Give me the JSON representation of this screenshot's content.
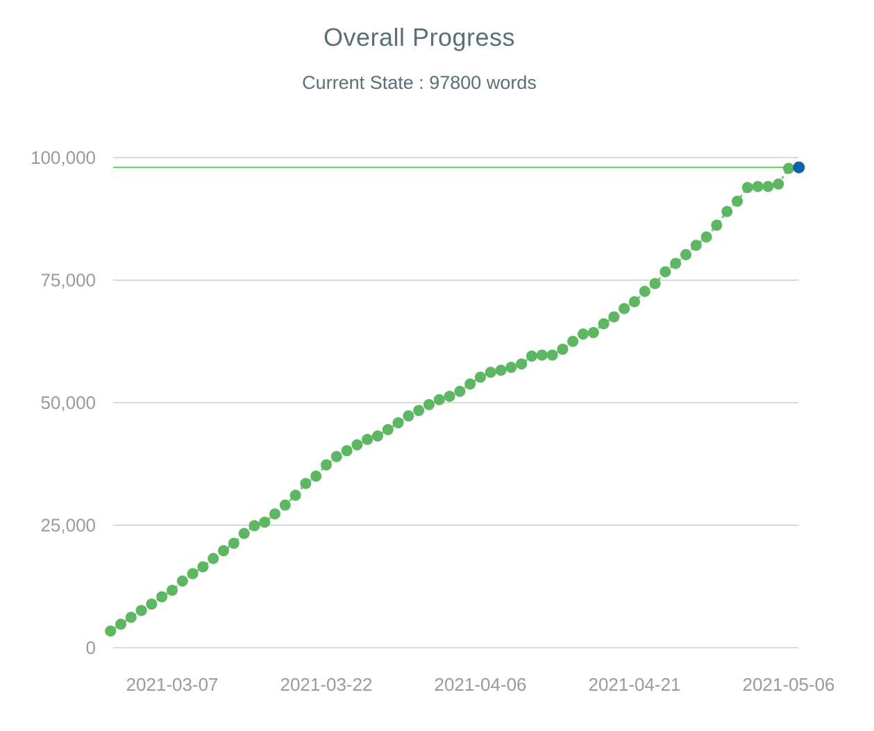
{
  "page": {
    "title": "Overall Progress",
    "subtitle": "Current State : 97800 words",
    "current_words": 97800
  },
  "colors": {
    "background": "#ffffff",
    "title_text": "#5a6f78",
    "axis_text": "#9a9a9a",
    "gridline": "#c2c2c2",
    "series_green": "#5db762",
    "connector_green": "#7cc87c",
    "goal_line_green": "#72cf72",
    "final_blue": "#1062a8"
  },
  "chart_data": {
    "type": "scatter",
    "title": "Overall Progress",
    "subtitle": "Current State : 97800 words",
    "xlabel": "",
    "ylabel": "",
    "grid": "horizontal",
    "legend": "none",
    "ylim": [
      0,
      100000
    ],
    "y_tick_values": [
      0,
      25000,
      50000,
      75000,
      100000
    ],
    "y_tick_labels": [
      "0",
      "25,000",
      "50,000",
      "75,000",
      "100,000"
    ],
    "x_tick_dates": [
      "2021-03-07",
      "2021-03-22",
      "2021-04-06",
      "2021-04-21",
      "2021-05-06"
    ],
    "goal_line_value": 98000,
    "series": [
      {
        "name": "daily-word-count",
        "style": "dots-with-dashed-connector",
        "columns": [
          "date",
          "words"
        ],
        "points": [
          [
            "2021-03-01",
            3400
          ],
          [
            "2021-03-02",
            4800
          ],
          [
            "2021-03-03",
            6200
          ],
          [
            "2021-03-04",
            7600
          ],
          [
            "2021-03-05",
            8900
          ],
          [
            "2021-03-06",
            10400
          ],
          [
            "2021-03-07",
            11700
          ],
          [
            "2021-03-08",
            13600
          ],
          [
            "2021-03-09",
            15100
          ],
          [
            "2021-03-10",
            16500
          ],
          [
            "2021-03-11",
            18200
          ],
          [
            "2021-03-12",
            19800
          ],
          [
            "2021-03-13",
            21300
          ],
          [
            "2021-03-14",
            23300
          ],
          [
            "2021-03-15",
            24900
          ],
          [
            "2021-03-16",
            25600
          ],
          [
            "2021-03-17",
            27300
          ],
          [
            "2021-03-18",
            29100
          ],
          [
            "2021-03-19",
            31100
          ],
          [
            "2021-03-20",
            33500
          ],
          [
            "2021-03-21",
            35000
          ],
          [
            "2021-03-22",
            37300
          ],
          [
            "2021-03-23",
            39000
          ],
          [
            "2021-03-24",
            40200
          ],
          [
            "2021-03-25",
            41400
          ],
          [
            "2021-03-26",
            42500
          ],
          [
            "2021-03-27",
            43200
          ],
          [
            "2021-03-28",
            44500
          ],
          [
            "2021-03-29",
            45900
          ],
          [
            "2021-03-30",
            47300
          ],
          [
            "2021-03-31",
            48400
          ],
          [
            "2021-04-01",
            49600
          ],
          [
            "2021-04-02",
            50600
          ],
          [
            "2021-04-03",
            51300
          ],
          [
            "2021-04-04",
            52300
          ],
          [
            "2021-04-05",
            53800
          ],
          [
            "2021-04-06",
            55200
          ],
          [
            "2021-04-07",
            56200
          ],
          [
            "2021-04-08",
            56600
          ],
          [
            "2021-04-09",
            57200
          ],
          [
            "2021-04-10",
            57900
          ],
          [
            "2021-04-11",
            59500
          ],
          [
            "2021-04-12",
            59700
          ],
          [
            "2021-04-13",
            59700
          ],
          [
            "2021-04-14",
            60900
          ],
          [
            "2021-04-15",
            62500
          ],
          [
            "2021-04-16",
            64000
          ],
          [
            "2021-04-17",
            64300
          ],
          [
            "2021-04-18",
            66100
          ],
          [
            "2021-04-19",
            67500
          ],
          [
            "2021-04-20",
            69200
          ],
          [
            "2021-04-21",
            70600
          ],
          [
            "2021-04-22",
            72700
          ],
          [
            "2021-04-23",
            74300
          ],
          [
            "2021-04-24",
            76700
          ],
          [
            "2021-04-25",
            78400
          ],
          [
            "2021-04-26",
            80200
          ],
          [
            "2021-04-27",
            82100
          ],
          [
            "2021-04-28",
            83800
          ],
          [
            "2021-04-29",
            86200
          ],
          [
            "2021-04-30",
            89000
          ],
          [
            "2021-05-01",
            91100
          ],
          [
            "2021-05-02",
            93900
          ],
          [
            "2021-05-03",
            94100
          ],
          [
            "2021-05-04",
            94100
          ],
          [
            "2021-05-05",
            94600
          ],
          [
            "2021-05-06",
            97800
          ]
        ]
      },
      {
        "name": "goal-point",
        "style": "single-dot",
        "columns": [
          "date",
          "words"
        ],
        "points": [
          [
            "2021-05-07",
            98000
          ]
        ]
      }
    ]
  }
}
